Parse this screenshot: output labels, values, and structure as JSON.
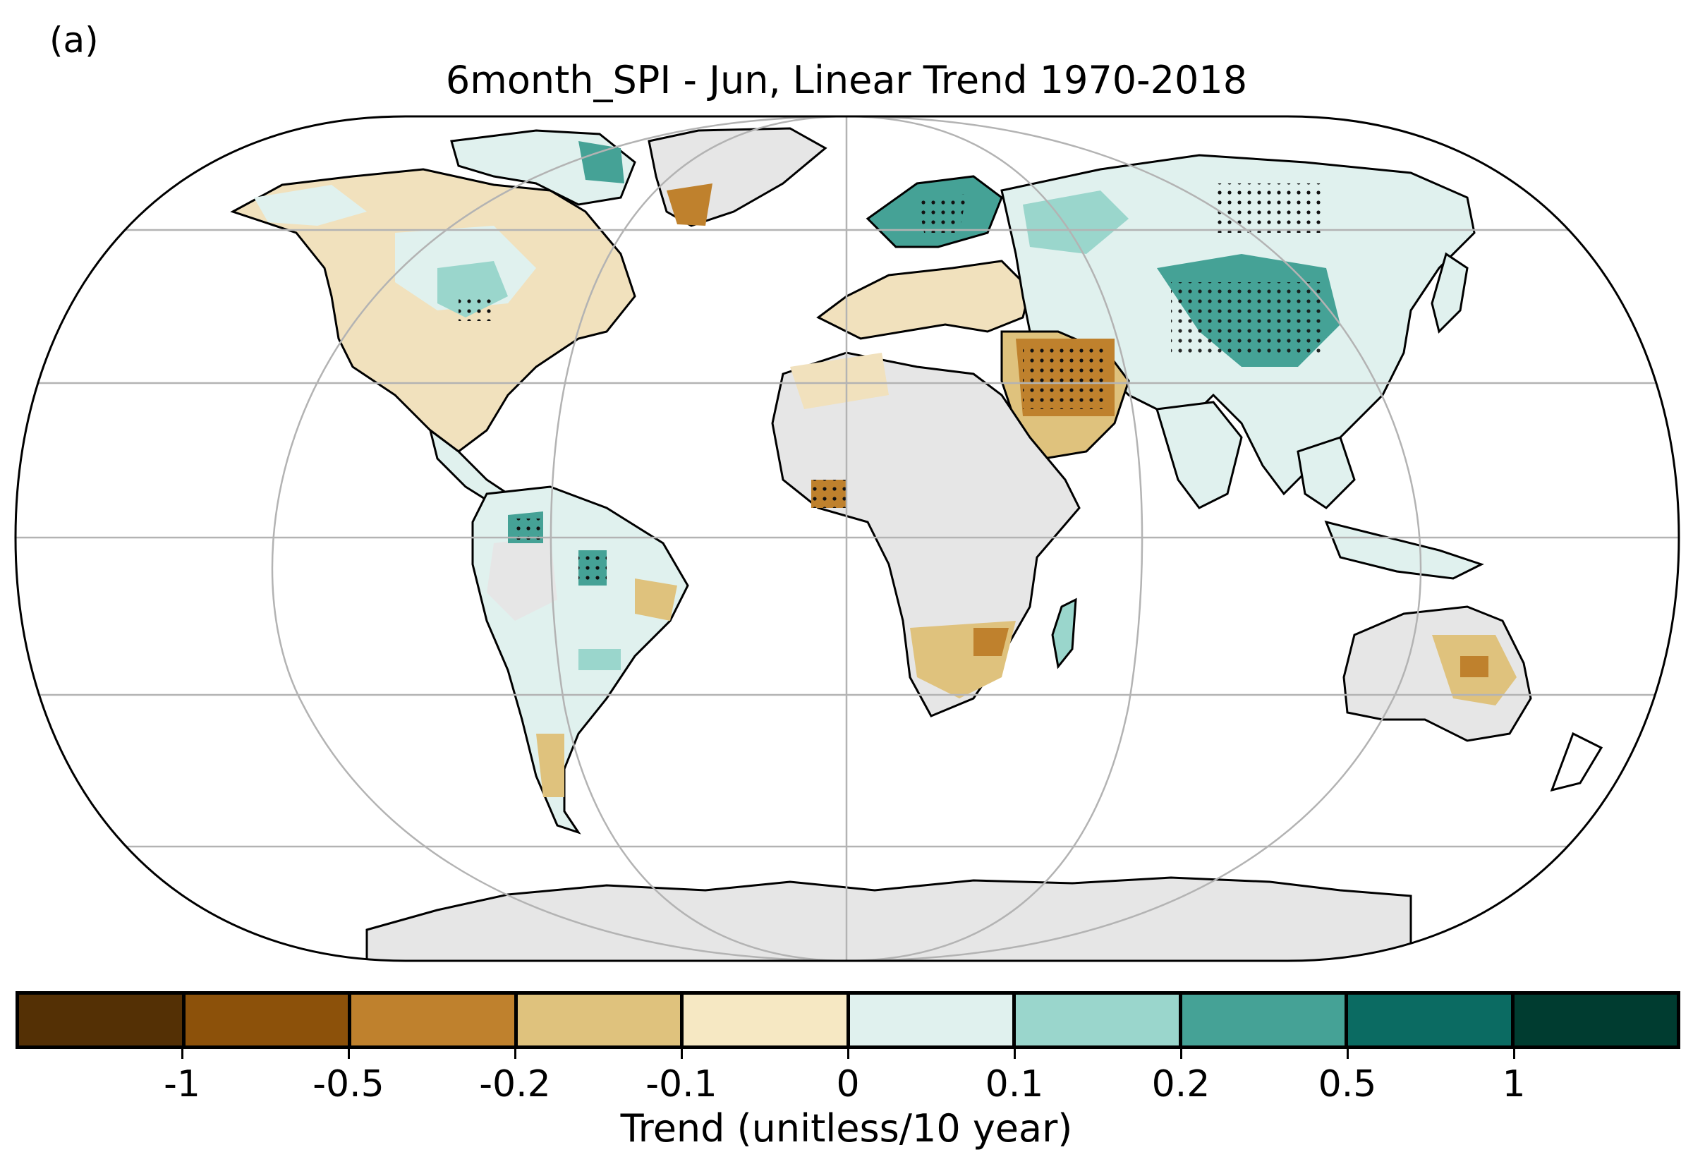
{
  "panel_label": "(a)",
  "title": "6month_SPI - Jun, Linear Trend 1970-2018",
  "colorbar": {
    "label": "Trend (unitless/10 year)",
    "colors": [
      "#543005",
      "#8c510a",
      "#bf812d",
      "#dfc27d",
      "#f6e8c3",
      "#e0f1ee",
      "#9ad6cc",
      "#45a296",
      "#0b6b62",
      "#003c30"
    ],
    "ticks": [
      "-1",
      "-0.5",
      "-0.2",
      "-0.1",
      "0",
      "0.1",
      "0.2",
      "0.5",
      "1"
    ]
  },
  "map": {
    "projection": "Robinson",
    "gridlines": true,
    "no_data_color": "#e6e6e6",
    "stippling": "dots mark significant trends"
  }
}
